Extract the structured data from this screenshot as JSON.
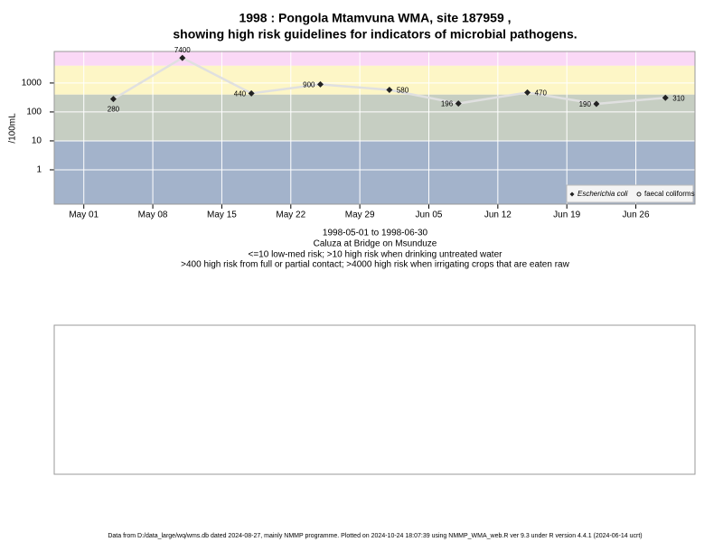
{
  "chart_data": {
    "type": "line",
    "title": [
      "1998 : Pongola Mtamvuna WMA, site 187959 ,",
      "showing high risk guidelines for indicators of microbial pathogens."
    ],
    "ylabel": "/100mL",
    "log_y": true,
    "grid": true,
    "legend": "bottom-right",
    "ylim": [
      0.065,
      12300
    ],
    "yticks": [
      1,
      10,
      100,
      1000
    ],
    "xlim": [
      "1998-04-28",
      "1998-07-02"
    ],
    "xticks": [
      {
        "value": "1998-05-01",
        "label": "May 01"
      },
      {
        "value": "1998-05-08",
        "label": "May 08"
      },
      {
        "value": "1998-05-15",
        "label": "May 15"
      },
      {
        "value": "1998-05-22",
        "label": "May 22"
      },
      {
        "value": "1998-05-29",
        "label": "May 29"
      },
      {
        "value": "1998-06-05",
        "label": "Jun 05"
      },
      {
        "value": "1998-06-12",
        "label": "Jun 12"
      },
      {
        "value": "1998-06-19",
        "label": "Jun 19"
      },
      {
        "value": "1998-06-26",
        "label": "Jun 26"
      }
    ],
    "band_limits": [
      10,
      400,
      4000
    ],
    "band_colors": [
      "#a3b3cb",
      "#c6cec2",
      "#fdf6c6",
      "#fad8f6"
    ],
    "x": [
      "1998-05-04",
      "1998-05-11",
      "1998-05-18",
      "1998-05-25",
      "1998-06-01",
      "1998-06-08",
      "1998-06-15",
      "1998-06-22",
      "1998-06-29"
    ],
    "series": [
      {
        "name": "Escherichia coli",
        "color": "#222222",
        "line_color": "#e0e0e0",
        "values": [
          280,
          7400,
          440,
          900,
          580,
          196,
          470,
          190,
          310
        ]
      },
      {
        "name": "faecal coliforms",
        "color": "#222222",
        "values": [
          null,
          null,
          null,
          null,
          null,
          null,
          null,
          null,
          null
        ]
      }
    ],
    "caption": [
      "1998-05-01 to 1998-06-30",
      "Caluza at Bridge on Msunduze",
      "<=10 low-med risk; >10 high risk when drinking untreated water",
      ">400 high risk from full or partial contact; >4000 high risk when irrigating crops that are eaten raw"
    ],
    "footer": "Data from D:/data_large/wq/wms.db dated 2024-08-27, mainly NMMP programme. Plotted on 2024-10-24 18:07:39 using NMMP_WMA_web.R ver 9.3 under R version 4.4.1 (2024-06-14 ucrt)"
  }
}
